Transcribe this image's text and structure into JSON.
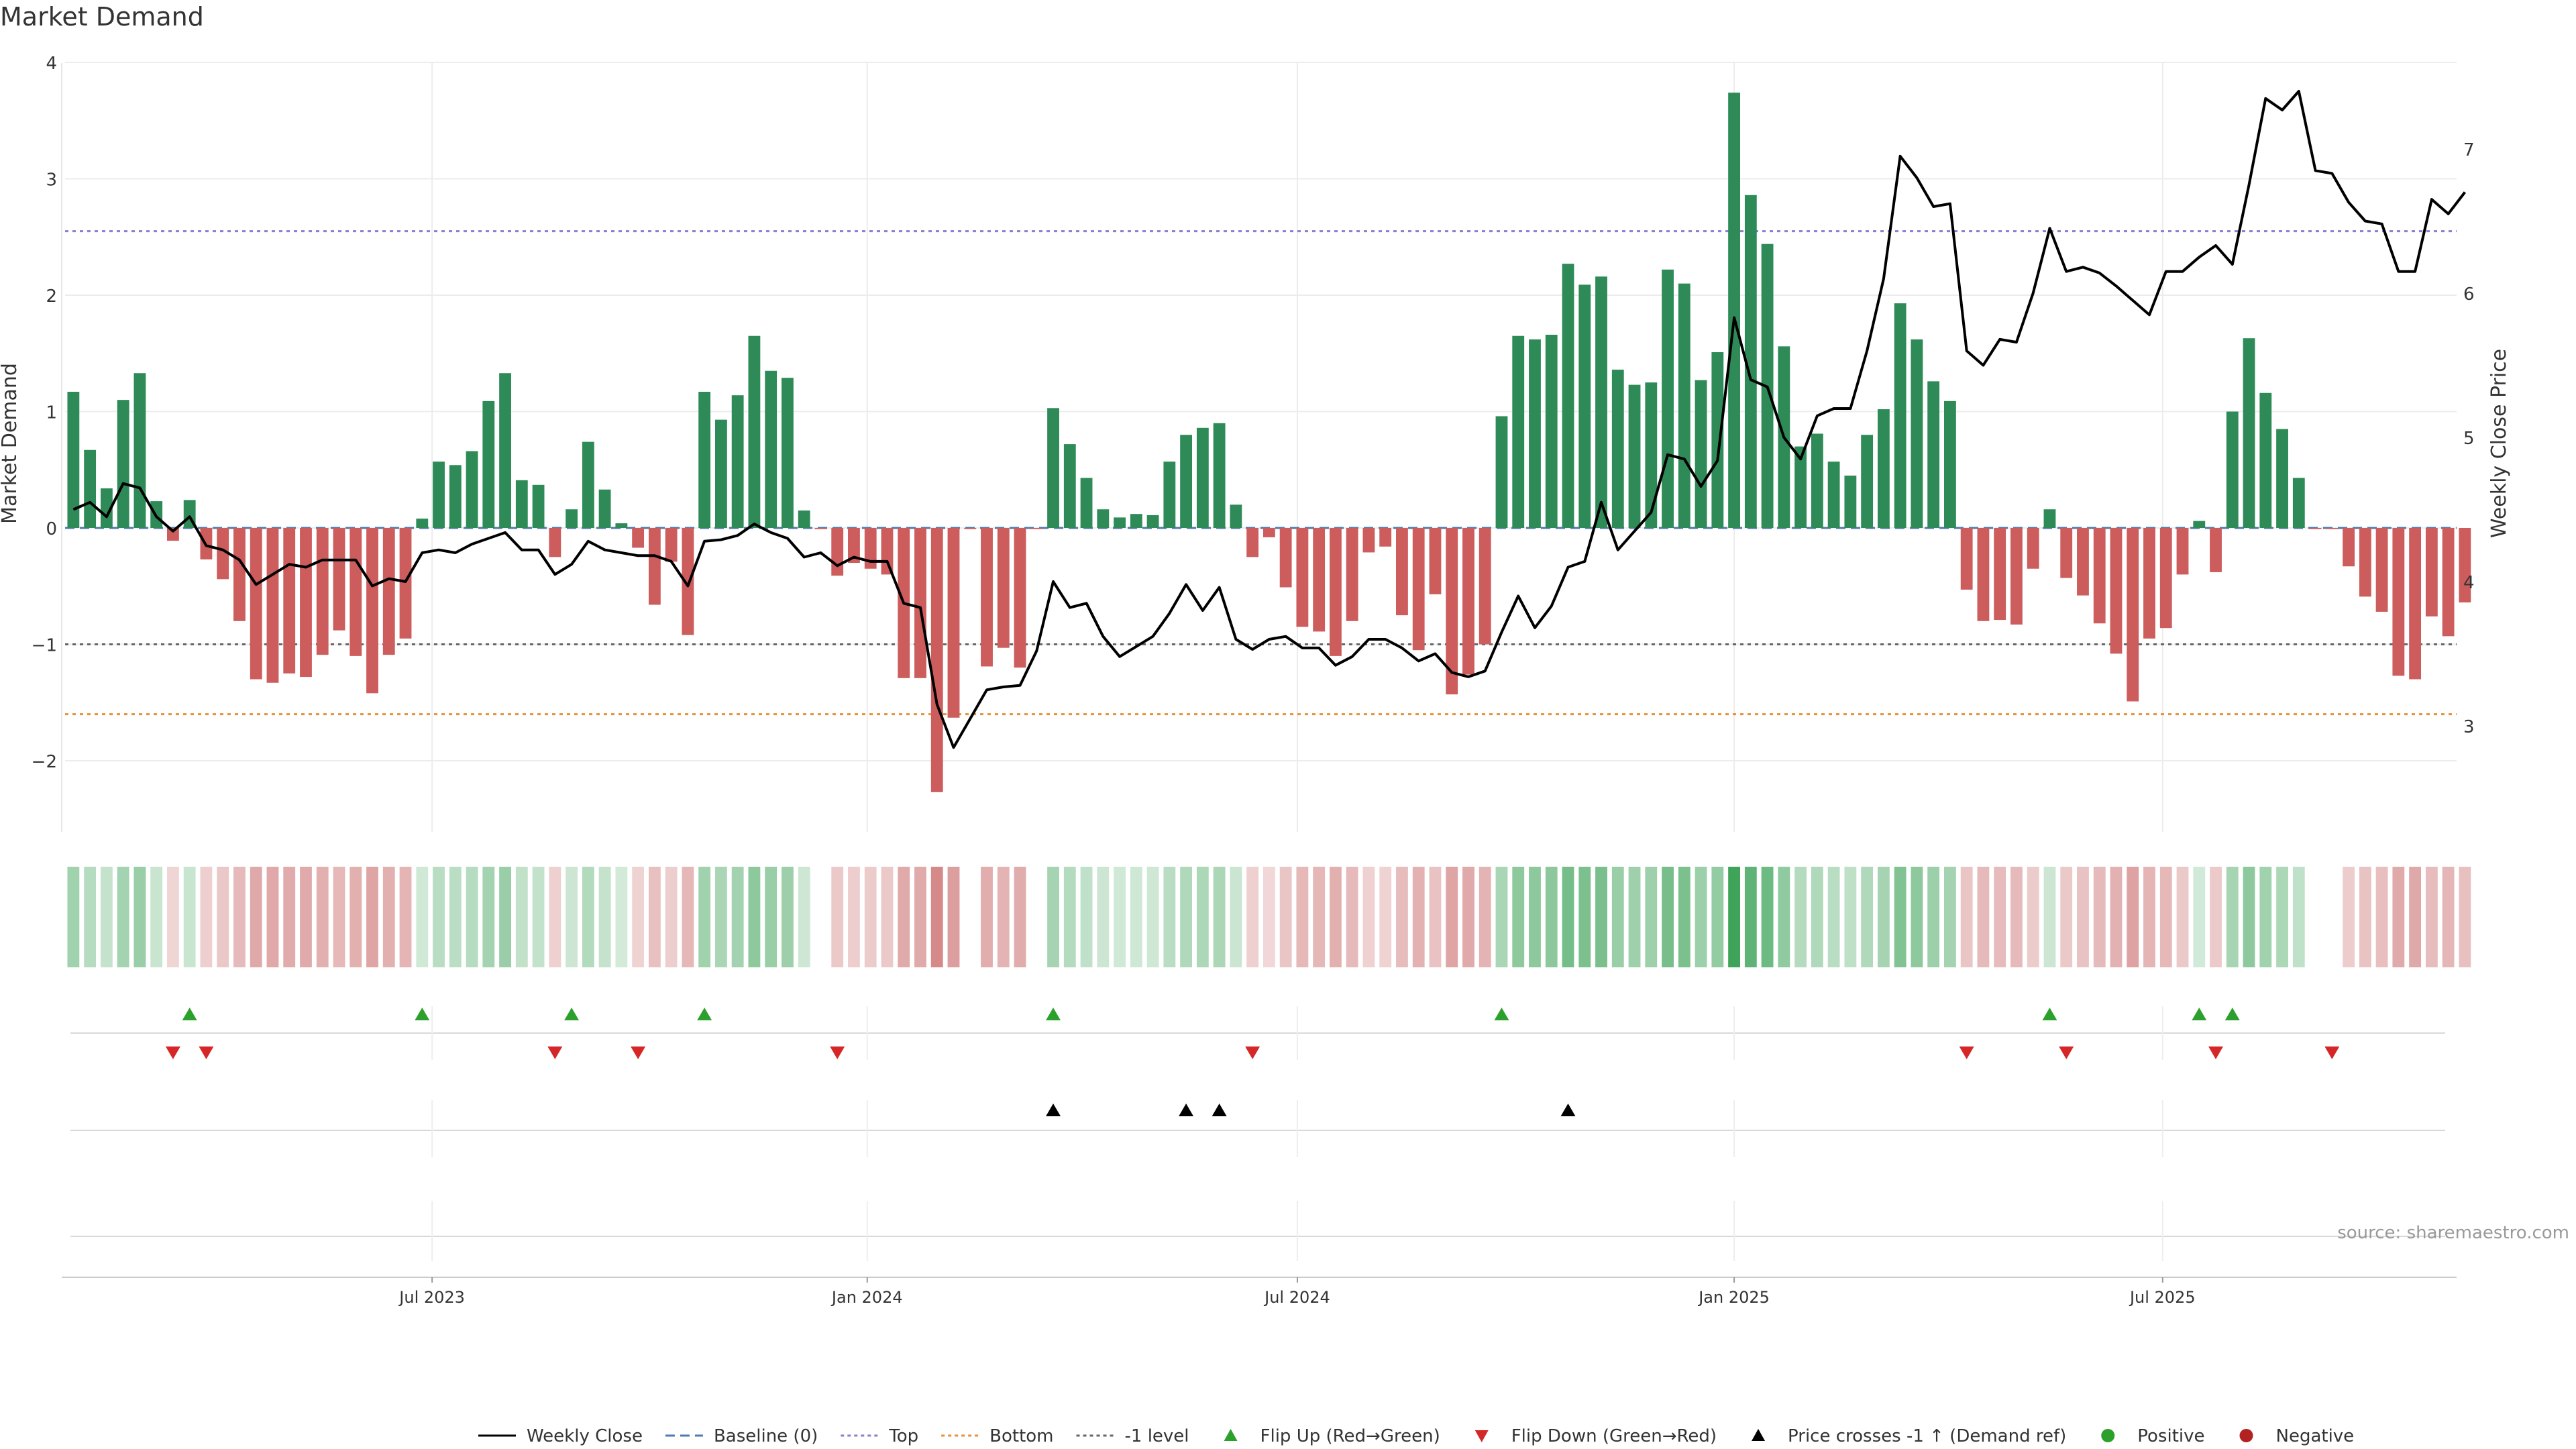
{
  "chart_data": {
    "type": "bar",
    "title": "Market Demand",
    "ylabel": "Market Demand",
    "y2label": "Weekly Close Price",
    "ylim": [
      -2.6,
      4.1
    ],
    "y2lim": [
      2.4,
      7.9
    ],
    "yticks": [
      -2,
      -1,
      0,
      1,
      2,
      3,
      4
    ],
    "y2ticks": [
      3,
      4,
      5,
      6,
      7
    ],
    "x_range_weeks": [
      0,
      144
    ],
    "x_ticks": [
      {
        "label": "Jul 2023",
        "week": 22.1
      },
      {
        "label": "Jan 2024",
        "week": 48.3
      },
      {
        "label": "Jul 2024",
        "week": 74.2
      },
      {
        "label": "Jan 2025",
        "week": 100.5
      },
      {
        "label": "Jul 2025",
        "week": 126.3
      }
    ],
    "reference_lines": [
      {
        "name": "Baseline (0)",
        "value": 0,
        "color": "#4e79b5",
        "style": "dashed"
      },
      {
        "name": "Top",
        "value": 2.55,
        "color": "#8a7fcf",
        "style": "dotted"
      },
      {
        "name": "Bottom",
        "value": -1.6,
        "color": "#e69138",
        "style": "dotted"
      },
      {
        "name": "-1 level",
        "value": -1,
        "color": "#666666",
        "style": "dotted"
      }
    ],
    "demand_values": [
      1.17,
      0.67,
      0.34,
      1.1,
      1.33,
      0.23,
      -0.11,
      0.24,
      -0.27,
      -0.44,
      -0.8,
      -1.3,
      -1.33,
      -1.25,
      -1.28,
      -1.09,
      -0.88,
      -1.1,
      -1.42,
      -1.09,
      -0.95,
      0.08,
      0.57,
      0.54,
      0.66,
      1.09,
      1.33,
      0.41,
      0.37,
      -0.25,
      0.16,
      0.74,
      0.33,
      0.04,
      -0.17,
      -0.66,
      -0.29,
      -0.92,
      1.17,
      0.93,
      1.14,
      1.65,
      1.35,
      1.29,
      0.15,
      -0.01,
      -0.41,
      -0.3,
      -0.35,
      -0.4,
      -1.29,
      -1.29,
      -2.27,
      -1.63,
      -0.01,
      -1.19,
      -1.03,
      -1.2,
      -0.01,
      1.03,
      0.72,
      0.43,
      0.16,
      0.09,
      0.12,
      0.11,
      0.57,
      0.8,
      0.86,
      0.9,
      0.2,
      -0.25,
      -0.08,
      -0.51,
      -0.85,
      -0.89,
      -1.1,
      -0.8,
      -0.21,
      -0.16,
      -0.75,
      -1.05,
      -0.57,
      -1.43,
      -1.26,
      -1.0,
      0.96,
      1.65,
      1.62,
      1.66,
      2.27,
      2.09,
      2.16,
      1.36,
      1.23,
      1.25,
      2.22,
      2.1,
      1.27,
      1.51,
      3.74,
      2.86,
      2.44,
      1.56,
      0.7,
      0.81,
      0.57,
      0.45,
      0.8,
      1.02,
      1.93,
      1.62,
      1.26,
      1.09,
      -0.53,
      -0.8,
      -0.79,
      -0.83,
      -0.35,
      0.16,
      -0.43,
      -0.58,
      -0.82,
      -1.08,
      -1.49,
      -0.95,
      -0.86,
      -0.4,
      0.06,
      -0.38,
      1.0,
      1.63,
      1.16,
      0.85,
      0.43,
      -0.01,
      -0.01,
      -0.33,
      -0.59,
      -0.72,
      -1.27,
      -1.3,
      -0.76,
      -0.93,
      -0.64
    ],
    "price_values": [
      4.5,
      4.55,
      4.45,
      4.68,
      4.65,
      4.45,
      4.35,
      4.45,
      4.25,
      4.22,
      4.15,
      3.98,
      4.05,
      4.12,
      4.1,
      4.15,
      4.15,
      4.15,
      3.97,
      4.02,
      4.0,
      4.2,
      4.22,
      4.2,
      4.26,
      4.3,
      4.34,
      4.22,
      4.22,
      4.05,
      4.12,
      4.28,
      4.22,
      4.2,
      4.18,
      4.18,
      4.14,
      3.97,
      4.28,
      4.29,
      4.32,
      4.4,
      4.34,
      4.3,
      4.17,
      4.2,
      4.11,
      4.17,
      4.14,
      4.14,
      3.85,
      3.82,
      3.15,
      2.85,
      3.05,
      3.25,
      3.27,
      3.28,
      3.52,
      4.0,
      3.82,
      3.85,
      3.62,
      3.48,
      3.55,
      3.62,
      3.78,
      3.98,
      3.8,
      3.96,
      3.6,
      3.53,
      3.6,
      3.62,
      3.54,
      3.54,
      3.42,
      3.48,
      3.6,
      3.6,
      3.54,
      3.45,
      3.5,
      3.37,
      3.34,
      3.38,
      3.65,
      3.9,
      3.68,
      3.83,
      4.1,
      4.14,
      4.55,
      4.22,
      4.35,
      4.48,
      4.88,
      4.85,
      4.66,
      4.84,
      5.83,
      5.4,
      5.35,
      5.0,
      4.85,
      5.15,
      5.2,
      5.2,
      5.6,
      6.1,
      6.95,
      6.8,
      6.6,
      6.62,
      5.6,
      5.5,
      5.68,
      5.66,
      6.0,
      6.45,
      6.15,
      6.18,
      6.14,
      6.05,
      5.95,
      5.85,
      6.15,
      6.15,
      6.25,
      6.33,
      6.2,
      6.75,
      7.35,
      7.27,
      7.4,
      6.85,
      6.83,
      6.63,
      6.5,
      6.48,
      6.15,
      6.15,
      6.65,
      6.55,
      6.7
    ],
    "flip_up_weeks": [
      7,
      21,
      30,
      38,
      59,
      86,
      119,
      128,
      130
    ],
    "flip_down_weeks": [
      6,
      8,
      29,
      34,
      46,
      71,
      114,
      120,
      129,
      136
    ],
    "price_cross_weeks": [
      59,
      67,
      69,
      90
    ],
    "colors": {
      "positive_bar": "#2e8b57",
      "negative_bar": "#cd5c5c",
      "price_line": "#000000",
      "flip_up": "#2ca02c",
      "flip_down": "#d62728",
      "cross": "#000000",
      "positive_dot": "#2ca02c",
      "negative_dot": "#b22222",
      "grid": "#ececec"
    },
    "legend": [
      {
        "key": "weekly_close",
        "label": "Weekly Close",
        "symbol": "line",
        "color": "#000000"
      },
      {
        "key": "baseline",
        "label": "Baseline (0)",
        "symbol": "dashed",
        "color": "#4e79b5"
      },
      {
        "key": "top",
        "label": "Top",
        "symbol": "dotted",
        "color": "#8a7fcf"
      },
      {
        "key": "bottom",
        "label": "Bottom",
        "symbol": "dotted",
        "color": "#e69138"
      },
      {
        "key": "minus_one",
        "label": "-1 level",
        "symbol": "dotted",
        "color": "#666666"
      },
      {
        "key": "flip_up",
        "label": "Flip Up (Red→Green)",
        "symbol": "triangle-up",
        "color": "#2ca02c"
      },
      {
        "key": "flip_down",
        "label": "Flip Down (Green→Red)",
        "symbol": "triangle-down",
        "color": "#d62728"
      },
      {
        "key": "price_cross",
        "label": "Price crosses -1 ↑ (Demand ref)",
        "symbol": "triangle-up",
        "color": "#000000"
      },
      {
        "key": "positive",
        "label": "Positive",
        "symbol": "dot",
        "color": "#2ca02c"
      },
      {
        "key": "negative",
        "label": "Negative",
        "symbol": "dot",
        "color": "#b22222"
      }
    ],
    "source": "source: sharemaestro.com"
  }
}
